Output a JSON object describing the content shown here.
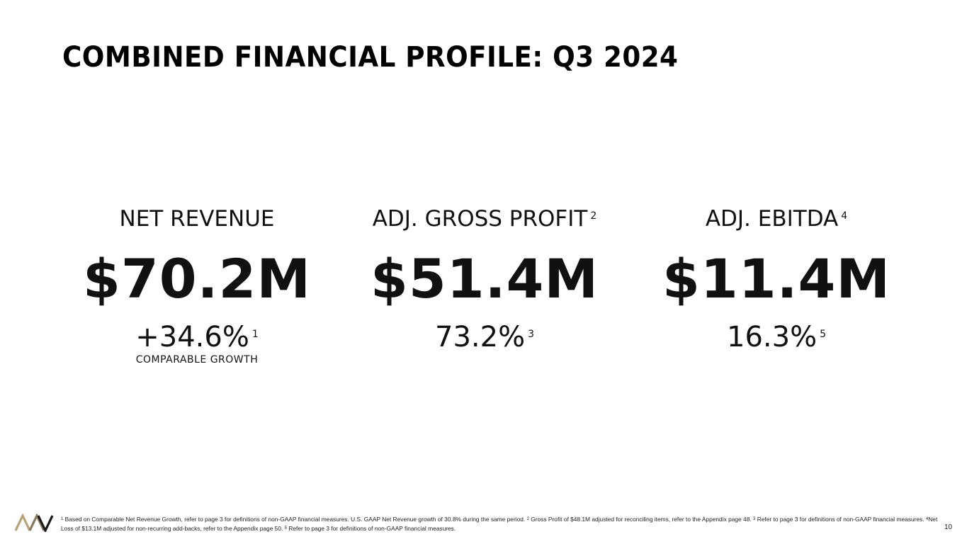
{
  "title": "COMBINED FINANCIAL PROFILE: Q3 2024",
  "metrics": [
    {
      "label": "NET REVENUE",
      "label_note": "",
      "value": "$70.2M",
      "sub": "+34.6%",
      "sub_note": "1",
      "sub_label": "COMPARABLE GROWTH"
    },
    {
      "label": "ADJ. GROSS PROFIT",
      "label_note": "2",
      "value": "$51.4M",
      "sub": "73.2%",
      "sub_note": "3",
      "sub_label": ""
    },
    {
      "label": "ADJ. EBITDA",
      "label_note": "4",
      "value": "$11.4M",
      "sub": "16.3%",
      "sub_note": "5",
      "sub_label": ""
    }
  ],
  "footnotes": [
    {
      "num": "1",
      "text": " Based on Comparable Net Revenue Growth, refer to page 3 for definitions of non-GAAP financial measures. U.S. GAAP Net Revenue growth of 30.8% during the same period. "
    },
    {
      "num": "2",
      "text": " Gross Profit of $48.1M adjusted for reconciling items, refer to the Appendix page 48. "
    },
    {
      "num": "3",
      "text": " Refer to page 3 for definitions of non-GAAP financial measures. "
    },
    {
      "num": "4",
      "text": "Net Loss of $13.1M adjusted for non-recurring add-backs, refer to the Appendix page 50. "
    },
    {
      "num": "5",
      "text": " Refer to page 3 for definitions of non-GAAP financial measures."
    }
  ],
  "page_number": "10",
  "colors": {
    "text": "#111111",
    "logo_gold": "#b8a27a",
    "logo_dark": "#1a1a1a"
  },
  "logo": {
    "icon": "company-logo-icon"
  }
}
